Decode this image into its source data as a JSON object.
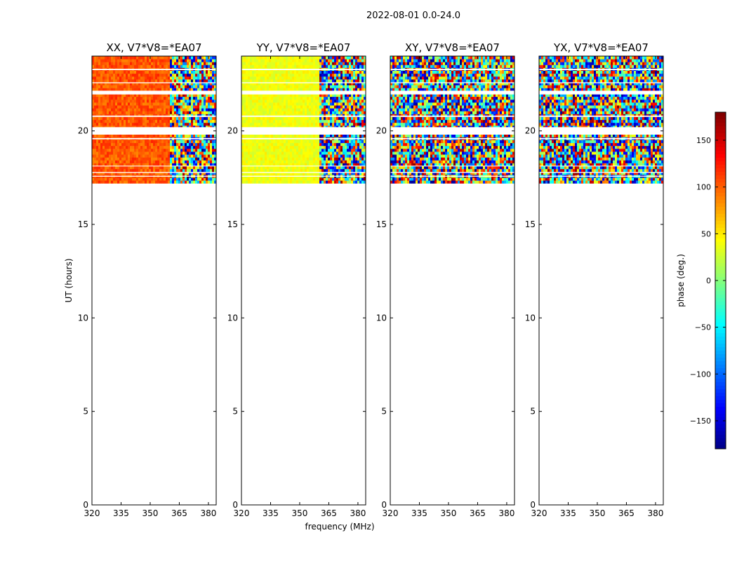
{
  "figure": {
    "suptitle": "2022-08-01 0.0-24.0",
    "xlabel": "frequency (MHz)",
    "ylabel": "UT (hours)",
    "colorbar_label": "phase (deg.)",
    "colorbar_ticks": [
      "150",
      "100",
      "50",
      "0",
      "−50",
      "−100",
      "−150"
    ],
    "colorbar_tick_values": [
      150,
      100,
      50,
      0,
      -50,
      -100,
      -150
    ],
    "colorbar_range": [
      -180,
      180
    ],
    "colormap": "jet"
  },
  "chart_data": [
    {
      "type": "heatmap",
      "title": "XX, V7*V8=*EA07",
      "xlabel": "",
      "ylabel": "UT (hours)",
      "xlim": [
        320,
        384
      ],
      "ylim": [
        0,
        24
      ],
      "xticks": [
        "320",
        "335",
        "350",
        "365",
        "380"
      ],
      "xtick_values": [
        320,
        335,
        350,
        365,
        380
      ],
      "yticks": [
        "0",
        "5",
        "10",
        "15",
        "20"
      ],
      "ytick_values": [
        0,
        5,
        10,
        15,
        20
      ],
      "data_extent_hours": [
        17.2,
        24
      ],
      "coherent_freq_range": [
        320,
        360
      ],
      "mean_phase_deg": 105,
      "phase_spread_deg": 18
    },
    {
      "type": "heatmap",
      "title": "YY, V7*V8=*EA07",
      "xlabel": "frequency (MHz)",
      "ylabel": "",
      "xlim": [
        320,
        384
      ],
      "ylim": [
        0,
        24
      ],
      "xticks": [
        "320",
        "335",
        "350",
        "365",
        "380"
      ],
      "xtick_values": [
        320,
        335,
        350,
        365,
        380
      ],
      "yticks": [
        "0",
        "5",
        "10",
        "15",
        "20"
      ],
      "ytick_values": [
        0,
        5,
        10,
        15,
        20
      ],
      "data_extent_hours": [
        17.2,
        24
      ],
      "coherent_freq_range": [
        320,
        360
      ],
      "mean_phase_deg": 40,
      "phase_spread_deg": 12
    },
    {
      "type": "heatmap",
      "title": "XY, V7*V8=*EA07",
      "xlabel": "",
      "ylabel": "",
      "xlim": [
        320,
        384
      ],
      "ylim": [
        0,
        24
      ],
      "xticks": [
        "320",
        "335",
        "350",
        "365",
        "380"
      ],
      "xtick_values": [
        320,
        335,
        350,
        365,
        380
      ],
      "yticks": [
        "0",
        "5",
        "10",
        "15",
        "20"
      ],
      "ytick_values": [
        0,
        5,
        10,
        15,
        20
      ],
      "data_extent_hours": [
        17.2,
        24
      ],
      "coherent_freq_range": [
        320,
        320
      ],
      "mean_phase_deg": 0,
      "phase_spread_deg": 180
    },
    {
      "type": "heatmap",
      "title": "YX, V7*V8=*EA07",
      "xlabel": "",
      "ylabel": "",
      "xlim": [
        320,
        384
      ],
      "ylim": [
        0,
        24
      ],
      "xticks": [
        "320",
        "335",
        "350",
        "365",
        "380"
      ],
      "xtick_values": [
        320,
        335,
        350,
        365,
        380
      ],
      "yticks": [
        "0",
        "5",
        "10",
        "15",
        "20"
      ],
      "ytick_values": [
        0,
        5,
        10,
        15,
        20
      ],
      "data_extent_hours": [
        17.2,
        24
      ],
      "coherent_freq_range": [
        320,
        320
      ],
      "mean_phase_deg": 0,
      "phase_spread_deg": 180
    }
  ],
  "gaps_hours": [
    [
      21.95,
      22.15
    ],
    [
      19.8,
      20.2
    ],
    [
      19.55,
      19.62
    ],
    [
      23.25,
      23.32
    ],
    [
      22.55,
      22.6
    ],
    [
      20.75,
      20.82
    ],
    [
      18.1,
      18.14
    ],
    [
      17.75,
      17.8
    ],
    [
      17.55,
      17.6
    ]
  ]
}
